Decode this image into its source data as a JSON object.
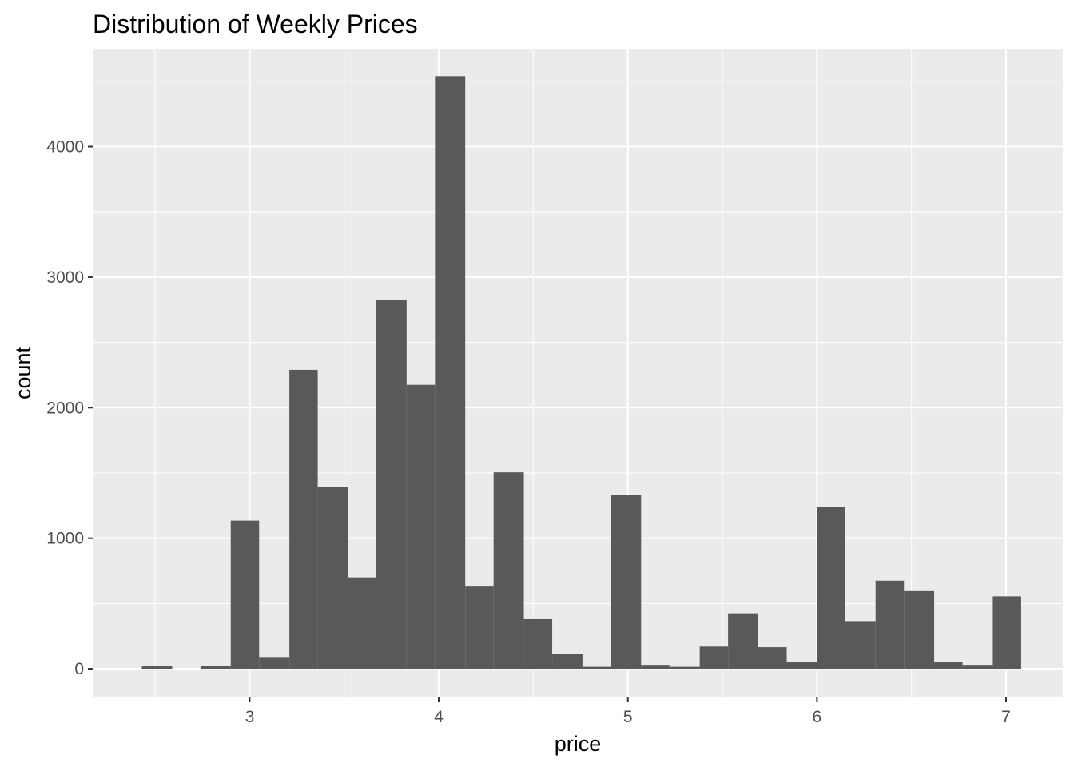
{
  "chart_data": {
    "type": "bar",
    "title": "Distribution of Weekly Prices",
    "xlabel": "price",
    "ylabel": "count",
    "xlim": [
      2.17,
      7.3
    ],
    "ylim": [
      -220,
      4750
    ],
    "x_ticks": [
      "3",
      "4",
      "5",
      "6",
      "7"
    ],
    "y_ticks": [
      "0",
      "1000",
      "2000",
      "3000",
      "4000"
    ],
    "grid": true,
    "panel_background": "#ebebeb",
    "bar_color": "#595959",
    "bins": [
      {
        "x0": 2.43,
        "x1": 2.59,
        "count": 20
      },
      {
        "x0": 2.59,
        "x1": 2.74,
        "count": 0
      },
      {
        "x0": 2.74,
        "x1": 2.9,
        "count": 20
      },
      {
        "x0": 2.9,
        "x1": 3.05,
        "count": 1135
      },
      {
        "x0": 3.05,
        "x1": 3.21,
        "count": 90
      },
      {
        "x0": 3.21,
        "x1": 3.36,
        "count": 2290
      },
      {
        "x0": 3.36,
        "x1": 3.52,
        "count": 1395
      },
      {
        "x0": 3.52,
        "x1": 3.67,
        "count": 700
      },
      {
        "x0": 3.67,
        "x1": 3.83,
        "count": 2825
      },
      {
        "x0": 3.83,
        "x1": 3.98,
        "count": 2175
      },
      {
        "x0": 3.98,
        "x1": 4.14,
        "count": 4540
      },
      {
        "x0": 4.14,
        "x1": 4.29,
        "count": 630
      },
      {
        "x0": 4.29,
        "x1": 4.45,
        "count": 1505
      },
      {
        "x0": 4.45,
        "x1": 4.6,
        "count": 380
      },
      {
        "x0": 4.6,
        "x1": 4.76,
        "count": 115
      },
      {
        "x0": 4.76,
        "x1": 4.91,
        "count": 15
      },
      {
        "x0": 4.91,
        "x1": 5.07,
        "count": 1330
      },
      {
        "x0": 5.07,
        "x1": 5.22,
        "count": 30
      },
      {
        "x0": 5.22,
        "x1": 5.38,
        "count": 15
      },
      {
        "x0": 5.38,
        "x1": 5.53,
        "count": 170
      },
      {
        "x0": 5.53,
        "x1": 5.69,
        "count": 425
      },
      {
        "x0": 5.69,
        "x1": 5.84,
        "count": 165
      },
      {
        "x0": 5.84,
        "x1": 6.0,
        "count": 50
      },
      {
        "x0": 6.0,
        "x1": 6.15,
        "count": 1240
      },
      {
        "x0": 6.15,
        "x1": 6.31,
        "count": 365
      },
      {
        "x0": 6.31,
        "x1": 6.46,
        "count": 675
      },
      {
        "x0": 6.46,
        "x1": 6.62,
        "count": 595
      },
      {
        "x0": 6.62,
        "x1": 6.77,
        "count": 50
      },
      {
        "x0": 6.77,
        "x1": 6.93,
        "count": 30
      },
      {
        "x0": 6.93,
        "x1": 7.08,
        "count": 555
      }
    ]
  }
}
